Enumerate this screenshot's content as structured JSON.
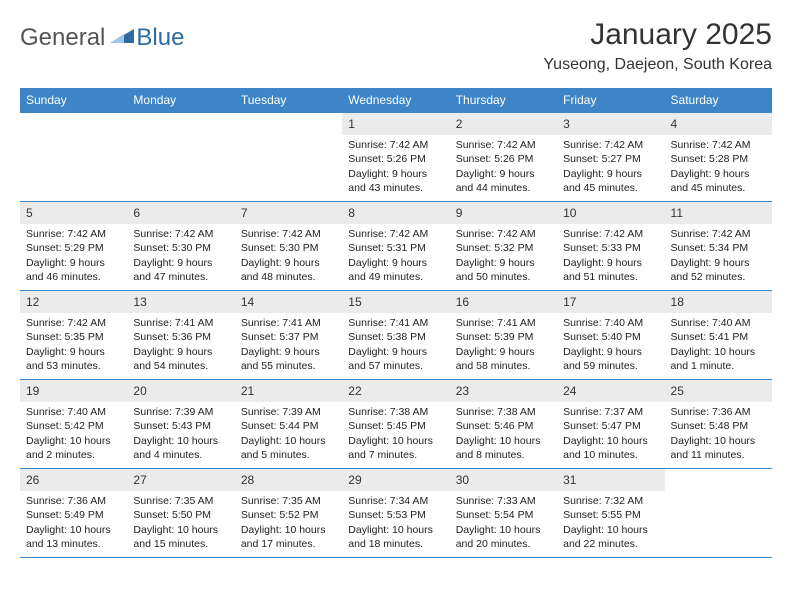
{
  "brand": {
    "part1": "General",
    "part2": "Blue"
  },
  "title": "January 2025",
  "location": "Yuseong, Daejeon, South Korea",
  "colors": {
    "header_bg": "#3d85c6",
    "header_text": "#ffffff",
    "daynum_bg": "#ebebeb",
    "border": "#3d85c6",
    "brand_gray": "#555555",
    "brand_blue": "#2b6ca3",
    "text": "#222222"
  },
  "weekdays": [
    "Sunday",
    "Monday",
    "Tuesday",
    "Wednesday",
    "Thursday",
    "Friday",
    "Saturday"
  ],
  "weeks": [
    [
      {
        "day": "",
        "sunrise": "",
        "sunset": "",
        "daylight": ""
      },
      {
        "day": "",
        "sunrise": "",
        "sunset": "",
        "daylight": ""
      },
      {
        "day": "",
        "sunrise": "",
        "sunset": "",
        "daylight": ""
      },
      {
        "day": "1",
        "sunrise": "Sunrise: 7:42 AM",
        "sunset": "Sunset: 5:26 PM",
        "daylight": "Daylight: 9 hours and 43 minutes."
      },
      {
        "day": "2",
        "sunrise": "Sunrise: 7:42 AM",
        "sunset": "Sunset: 5:26 PM",
        "daylight": "Daylight: 9 hours and 44 minutes."
      },
      {
        "day": "3",
        "sunrise": "Sunrise: 7:42 AM",
        "sunset": "Sunset: 5:27 PM",
        "daylight": "Daylight: 9 hours and 45 minutes."
      },
      {
        "day": "4",
        "sunrise": "Sunrise: 7:42 AM",
        "sunset": "Sunset: 5:28 PM",
        "daylight": "Daylight: 9 hours and 45 minutes."
      }
    ],
    [
      {
        "day": "5",
        "sunrise": "Sunrise: 7:42 AM",
        "sunset": "Sunset: 5:29 PM",
        "daylight": "Daylight: 9 hours and 46 minutes."
      },
      {
        "day": "6",
        "sunrise": "Sunrise: 7:42 AM",
        "sunset": "Sunset: 5:30 PM",
        "daylight": "Daylight: 9 hours and 47 minutes."
      },
      {
        "day": "7",
        "sunrise": "Sunrise: 7:42 AM",
        "sunset": "Sunset: 5:30 PM",
        "daylight": "Daylight: 9 hours and 48 minutes."
      },
      {
        "day": "8",
        "sunrise": "Sunrise: 7:42 AM",
        "sunset": "Sunset: 5:31 PM",
        "daylight": "Daylight: 9 hours and 49 minutes."
      },
      {
        "day": "9",
        "sunrise": "Sunrise: 7:42 AM",
        "sunset": "Sunset: 5:32 PM",
        "daylight": "Daylight: 9 hours and 50 minutes."
      },
      {
        "day": "10",
        "sunrise": "Sunrise: 7:42 AM",
        "sunset": "Sunset: 5:33 PM",
        "daylight": "Daylight: 9 hours and 51 minutes."
      },
      {
        "day": "11",
        "sunrise": "Sunrise: 7:42 AM",
        "sunset": "Sunset: 5:34 PM",
        "daylight": "Daylight: 9 hours and 52 minutes."
      }
    ],
    [
      {
        "day": "12",
        "sunrise": "Sunrise: 7:42 AM",
        "sunset": "Sunset: 5:35 PM",
        "daylight": "Daylight: 9 hours and 53 minutes."
      },
      {
        "day": "13",
        "sunrise": "Sunrise: 7:41 AM",
        "sunset": "Sunset: 5:36 PM",
        "daylight": "Daylight: 9 hours and 54 minutes."
      },
      {
        "day": "14",
        "sunrise": "Sunrise: 7:41 AM",
        "sunset": "Sunset: 5:37 PM",
        "daylight": "Daylight: 9 hours and 55 minutes."
      },
      {
        "day": "15",
        "sunrise": "Sunrise: 7:41 AM",
        "sunset": "Sunset: 5:38 PM",
        "daylight": "Daylight: 9 hours and 57 minutes."
      },
      {
        "day": "16",
        "sunrise": "Sunrise: 7:41 AM",
        "sunset": "Sunset: 5:39 PM",
        "daylight": "Daylight: 9 hours and 58 minutes."
      },
      {
        "day": "17",
        "sunrise": "Sunrise: 7:40 AM",
        "sunset": "Sunset: 5:40 PM",
        "daylight": "Daylight: 9 hours and 59 minutes."
      },
      {
        "day": "18",
        "sunrise": "Sunrise: 7:40 AM",
        "sunset": "Sunset: 5:41 PM",
        "daylight": "Daylight: 10 hours and 1 minute."
      }
    ],
    [
      {
        "day": "19",
        "sunrise": "Sunrise: 7:40 AM",
        "sunset": "Sunset: 5:42 PM",
        "daylight": "Daylight: 10 hours and 2 minutes."
      },
      {
        "day": "20",
        "sunrise": "Sunrise: 7:39 AM",
        "sunset": "Sunset: 5:43 PM",
        "daylight": "Daylight: 10 hours and 4 minutes."
      },
      {
        "day": "21",
        "sunrise": "Sunrise: 7:39 AM",
        "sunset": "Sunset: 5:44 PM",
        "daylight": "Daylight: 10 hours and 5 minutes."
      },
      {
        "day": "22",
        "sunrise": "Sunrise: 7:38 AM",
        "sunset": "Sunset: 5:45 PM",
        "daylight": "Daylight: 10 hours and 7 minutes."
      },
      {
        "day": "23",
        "sunrise": "Sunrise: 7:38 AM",
        "sunset": "Sunset: 5:46 PM",
        "daylight": "Daylight: 10 hours and 8 minutes."
      },
      {
        "day": "24",
        "sunrise": "Sunrise: 7:37 AM",
        "sunset": "Sunset: 5:47 PM",
        "daylight": "Daylight: 10 hours and 10 minutes."
      },
      {
        "day": "25",
        "sunrise": "Sunrise: 7:36 AM",
        "sunset": "Sunset: 5:48 PM",
        "daylight": "Daylight: 10 hours and 11 minutes."
      }
    ],
    [
      {
        "day": "26",
        "sunrise": "Sunrise: 7:36 AM",
        "sunset": "Sunset: 5:49 PM",
        "daylight": "Daylight: 10 hours and 13 minutes."
      },
      {
        "day": "27",
        "sunrise": "Sunrise: 7:35 AM",
        "sunset": "Sunset: 5:50 PM",
        "daylight": "Daylight: 10 hours and 15 minutes."
      },
      {
        "day": "28",
        "sunrise": "Sunrise: 7:35 AM",
        "sunset": "Sunset: 5:52 PM",
        "daylight": "Daylight: 10 hours and 17 minutes."
      },
      {
        "day": "29",
        "sunrise": "Sunrise: 7:34 AM",
        "sunset": "Sunset: 5:53 PM",
        "daylight": "Daylight: 10 hours and 18 minutes."
      },
      {
        "day": "30",
        "sunrise": "Sunrise: 7:33 AM",
        "sunset": "Sunset: 5:54 PM",
        "daylight": "Daylight: 10 hours and 20 minutes."
      },
      {
        "day": "31",
        "sunrise": "Sunrise: 7:32 AM",
        "sunset": "Sunset: 5:55 PM",
        "daylight": "Daylight: 10 hours and 22 minutes."
      },
      {
        "day": "",
        "sunrise": "",
        "sunset": "",
        "daylight": ""
      }
    ]
  ]
}
